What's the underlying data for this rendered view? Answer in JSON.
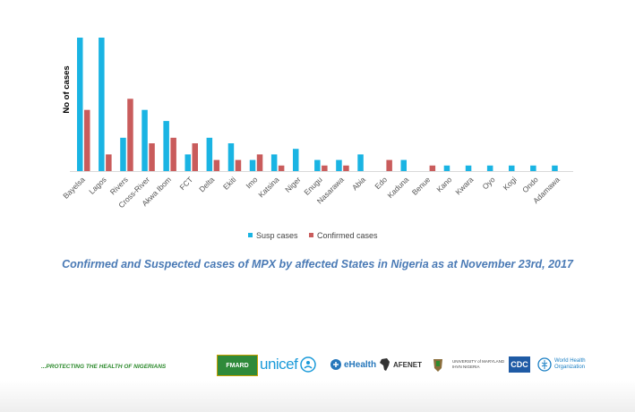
{
  "chart_data": {
    "type": "bar",
    "title": "",
    "xlabel": "",
    "ylabel": "No of cases",
    "ylim": [
      0,
      24
    ],
    "grid": false,
    "legend_position": "bottom",
    "categories": [
      "Bayelsa",
      "Lagos",
      "Rivers",
      "Cross-River",
      "Akwa Ibom",
      "FCT",
      "Delta",
      "Ekiti",
      "Imo",
      "Katsina",
      "Niger",
      "Enugu",
      "Nasarawa",
      "Abia",
      "Edo",
      "Kaduna",
      "Benue",
      "Kano",
      "Kwara",
      "Oyo",
      "Kogi",
      "Ondo",
      "Adamawa"
    ],
    "series": [
      {
        "name": "Susp cases",
        "color": "#1ab4e3",
        "values": [
          24,
          24,
          6,
          11,
          9,
          3,
          6,
          5,
          2,
          3,
          4,
          2,
          2,
          3,
          0,
          2,
          0,
          1,
          1,
          1,
          1,
          1,
          1
        ]
      },
      {
        "name": "Confirmed cases",
        "color": "#c95c5c",
        "values": [
          11,
          3,
          13,
          5,
          6,
          5,
          2,
          2,
          3,
          1,
          0,
          1,
          1,
          0,
          2,
          0,
          1,
          0,
          0,
          0,
          0,
          0,
          0
        ]
      }
    ]
  },
  "caption": "Confirmed and Suspected cases of MPX by affected States in Nigeria as at November 23rd, 2017",
  "footer": {
    "tagline": "...PROTECTING THE HEALTH OF NIGERIANS",
    "logos": {
      "fmard": "FMARD",
      "unicef": "unicef",
      "ehealth": "eHealth",
      "afenet": "AFENET",
      "umd_line1": "UNIVERSITY of MARYLAND",
      "umd_line2": "IHVN NIGERIA",
      "cdc": "CDC",
      "who_line1": "World Health",
      "who_line2": "Organization"
    }
  }
}
